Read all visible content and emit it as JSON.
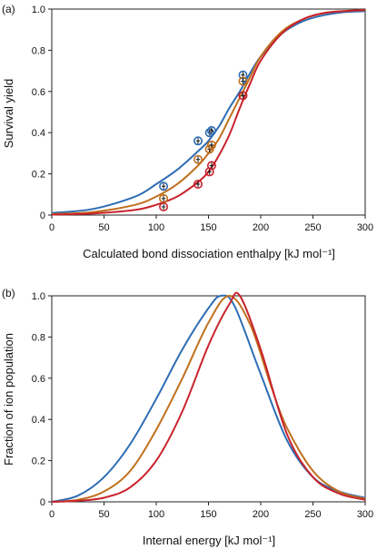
{
  "chart_data": [
    {
      "panel_label": "(a)",
      "type": "line",
      "xlabel": "Calculated bond dissociation enthalpy [kJ mol⁻¹]",
      "ylabel": "Survival yield",
      "xlim": [
        0,
        300
      ],
      "ylim": [
        0,
        1.0
      ],
      "xticks": [
        "0",
        "50",
        "100",
        "150",
        "200",
        "250",
        "300"
      ],
      "yticks": [
        "0",
        "0.2",
        "0.4",
        "0.6",
        "0.8",
        "1.0"
      ],
      "grid": false,
      "legend": "none",
      "series": [
        {
          "color": "#2e6db4",
          "curve": {
            "x": [
              0,
              40,
              80,
              100,
              120,
              140,
              150,
              160,
              170,
              180,
              190,
              200,
              220,
              240,
              260,
              280,
              300
            ],
            "y": [
              0.01,
              0.03,
              0.09,
              0.15,
              0.22,
              0.31,
              0.36,
              0.43,
              0.52,
              0.6,
              0.69,
              0.77,
              0.88,
              0.94,
              0.97,
              0.985,
              0.99
            ]
          },
          "points": {
            "x": [
              107,
              140,
              151,
              153,
              183
            ],
            "y": [
              0.14,
              0.36,
              0.4,
              0.41,
              0.68
            ]
          }
        },
        {
          "color": "#c0701e",
          "curve": {
            "x": [
              0,
              40,
              80,
              100,
              120,
              140,
              150,
              160,
              170,
              180,
              190,
              200,
              220,
              240,
              260,
              280,
              300
            ],
            "y": [
              0.005,
              0.015,
              0.05,
              0.09,
              0.15,
              0.24,
              0.3,
              0.37,
              0.47,
              0.57,
              0.67,
              0.77,
              0.89,
              0.95,
              0.98,
              0.99,
              0.995
            ]
          },
          "points": {
            "x": [
              107,
              140,
              151,
              153,
              183
            ],
            "y": [
              0.08,
              0.27,
              0.32,
              0.34,
              0.65
            ]
          }
        },
        {
          "color": "#c8232c",
          "curve": {
            "x": [
              0,
              40,
              80,
              100,
              120,
              140,
              150,
              160,
              170,
              180,
              190,
              200,
              220,
              240,
              260,
              280,
              300
            ],
            "y": [
              0.002,
              0.008,
              0.025,
              0.05,
              0.09,
              0.16,
              0.21,
              0.29,
              0.39,
              0.52,
              0.64,
              0.75,
              0.88,
              0.95,
              0.98,
              0.99,
              0.995
            ]
          },
          "points": {
            "x": [
              107,
              140,
              151,
              153,
              183
            ],
            "y": [
              0.04,
              0.15,
              0.21,
              0.24,
              0.58
            ]
          }
        }
      ]
    },
    {
      "panel_label": "(b)",
      "type": "line",
      "xlabel": "Internal energy [kJ mol⁻¹]",
      "ylabel": "Fraction of ion population",
      "xlim": [
        0,
        300
      ],
      "ylim": [
        0,
        1.0
      ],
      "xticks": [
        "0",
        "50",
        "100",
        "150",
        "200",
        "250",
        "300"
      ],
      "yticks": [
        "0",
        "0.2",
        "0.4",
        "0.6",
        "0.8",
        "1.0"
      ],
      "grid": false,
      "legend": "none",
      "series": [
        {
          "color": "#2e6db4",
          "x": [
            0,
            25,
            50,
            75,
            100,
            125,
            150,
            162,
            175,
            200,
            225,
            250,
            275,
            300
          ],
          "y": [
            0.0,
            0.03,
            0.12,
            0.28,
            0.5,
            0.74,
            0.94,
            1.0,
            0.95,
            0.62,
            0.3,
            0.12,
            0.05,
            0.02
          ]
        },
        {
          "color": "#c0701e",
          "x": [
            0,
            25,
            50,
            75,
            100,
            125,
            150,
            170,
            190,
            210,
            225,
            250,
            275,
            300
          ],
          "y": [
            0.0,
            0.01,
            0.05,
            0.15,
            0.35,
            0.6,
            0.87,
            1.0,
            0.86,
            0.56,
            0.36,
            0.15,
            0.05,
            0.015
          ]
        },
        {
          "color": "#c8232c",
          "x": [
            0,
            25,
            50,
            75,
            100,
            125,
            150,
            170,
            180,
            200,
            225,
            250,
            275,
            300
          ],
          "y": [
            0.0,
            0.005,
            0.02,
            0.07,
            0.2,
            0.44,
            0.76,
            0.96,
            1.0,
            0.74,
            0.33,
            0.12,
            0.04,
            0.01
          ]
        }
      ]
    }
  ]
}
